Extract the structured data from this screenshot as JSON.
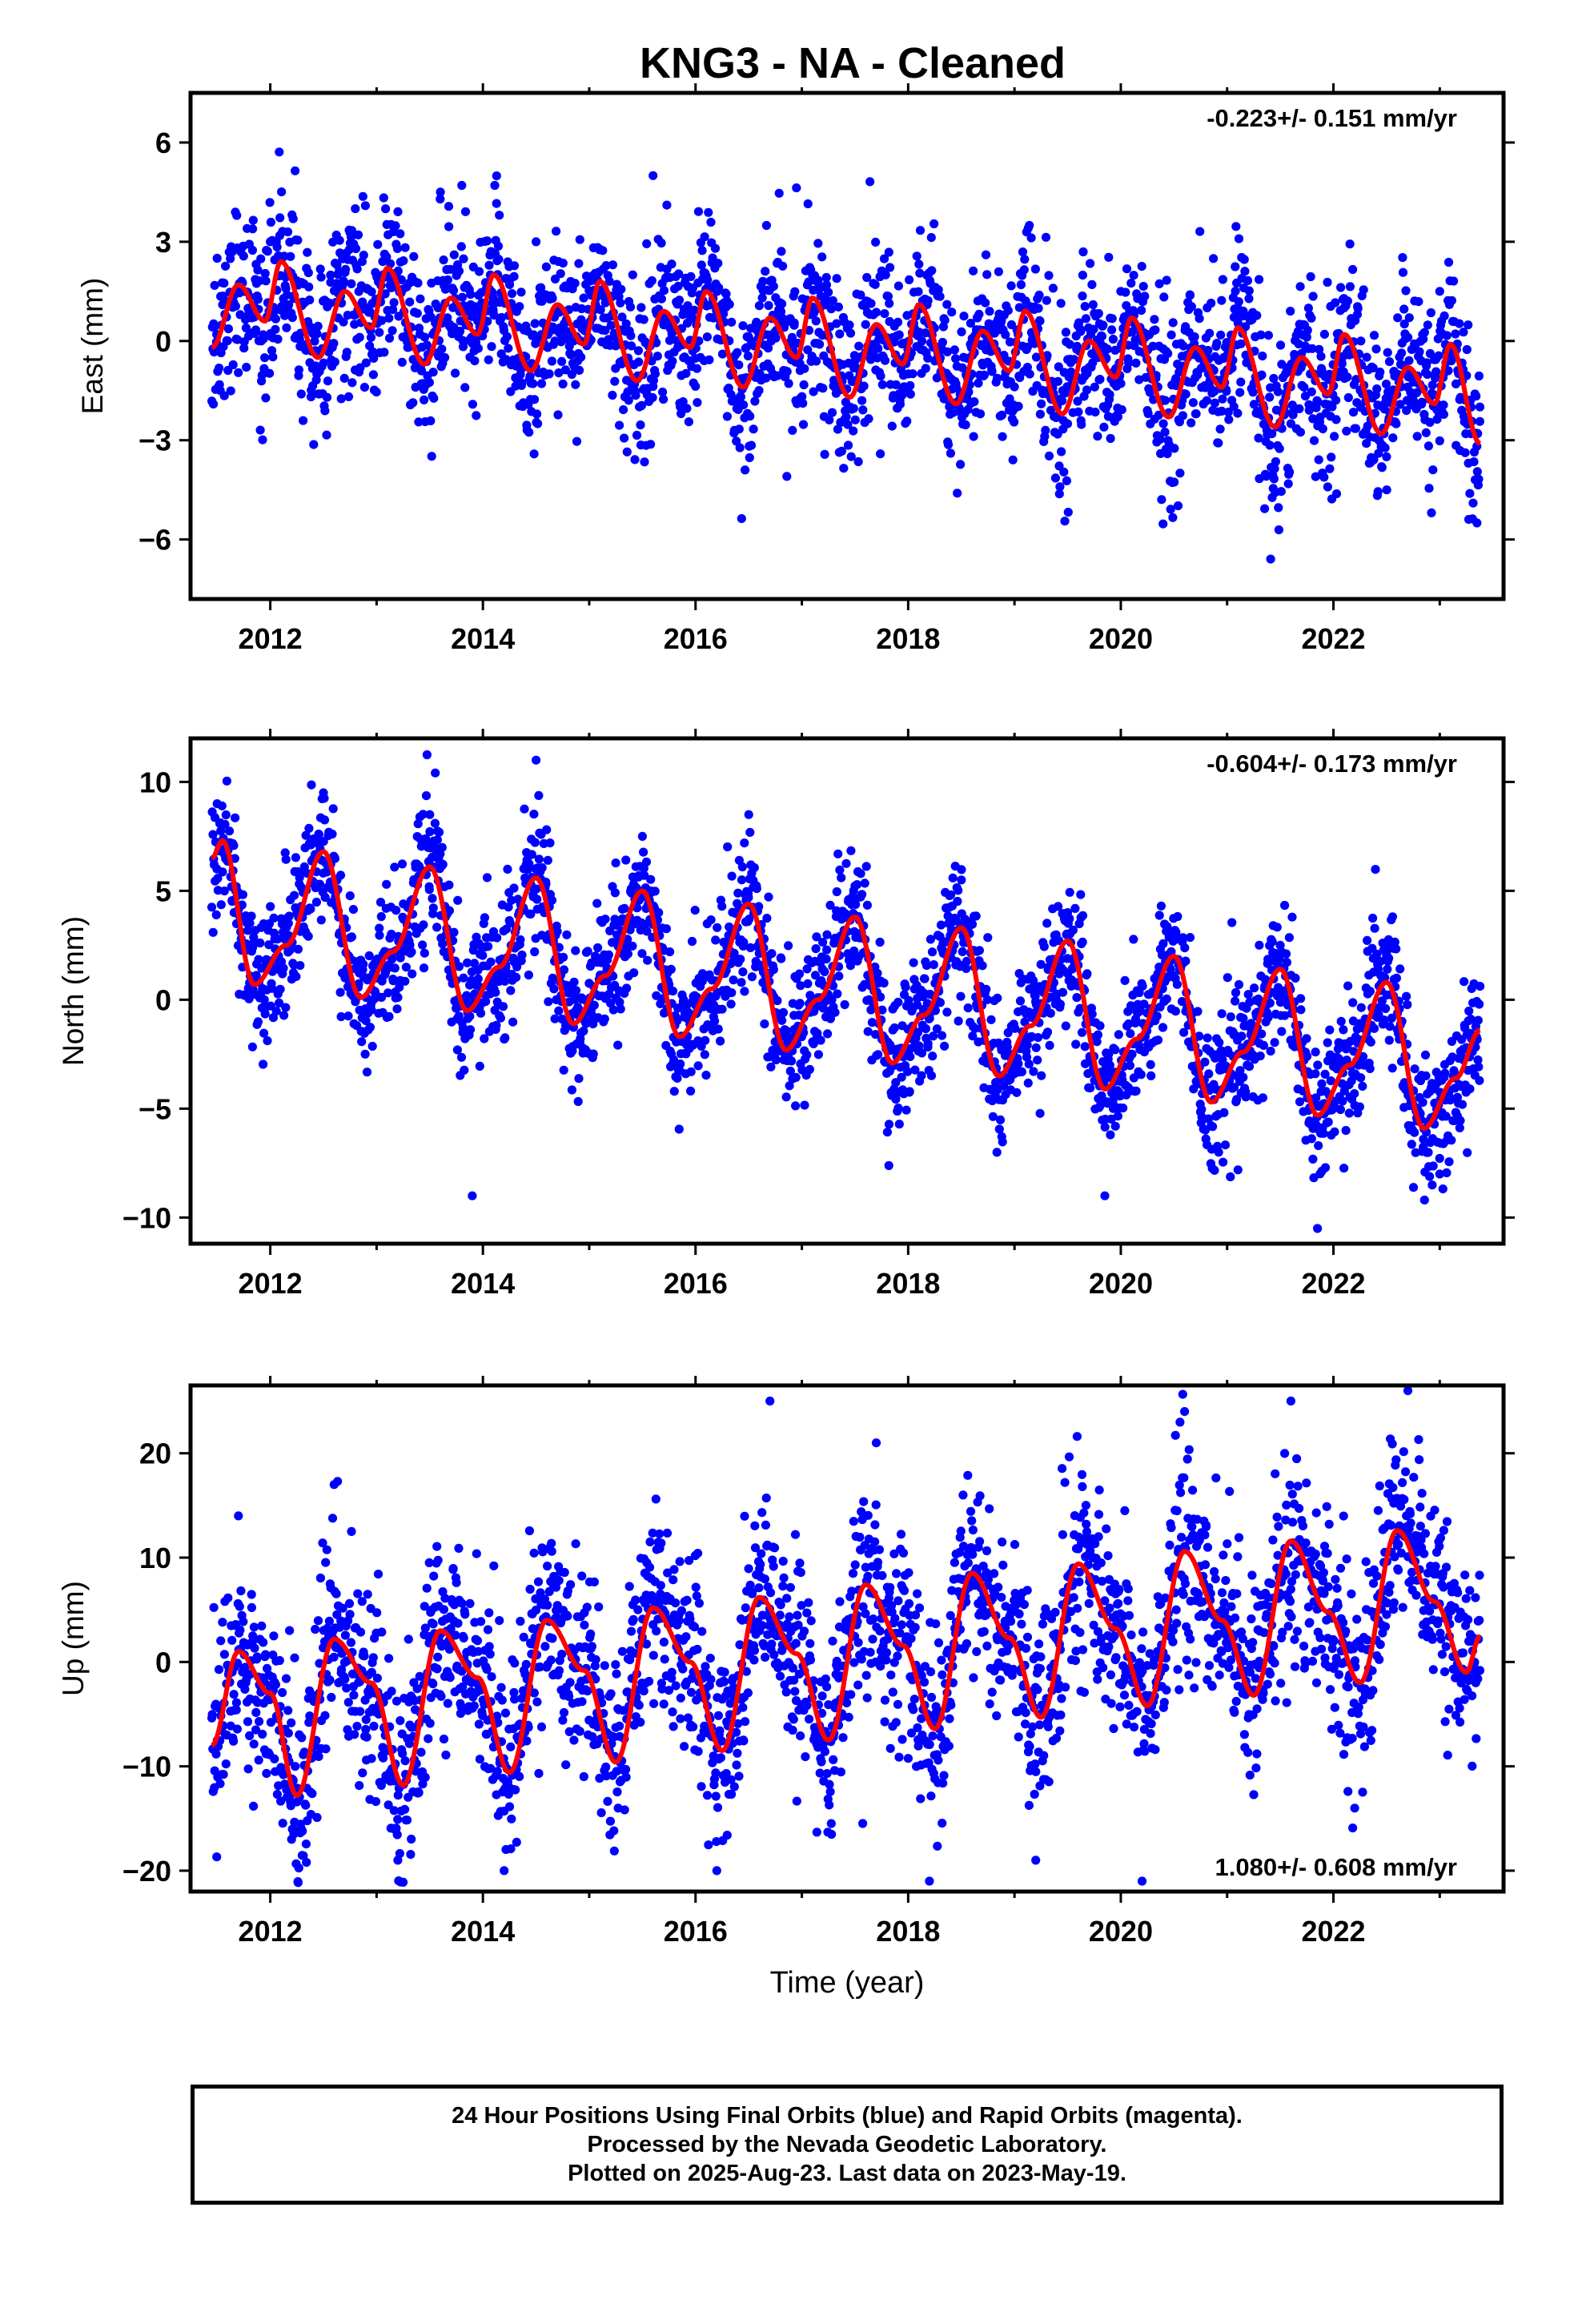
{
  "title": "KNG3  - NA - Cleaned",
  "footer": {
    "line1": "24 Hour Positions Using Final Orbits (blue) and Rapid Orbits (magenta).",
    "line2": "Processed by the Nevada Geodetic Laboratory.",
    "line3": "Plotted on 2025-Aug-23. Last data on 2023-May-19."
  },
  "colors": {
    "points": "#0000ff",
    "fit": "#ff0000",
    "frame": "#000000"
  },
  "chart_data": [
    {
      "type": "scatter",
      "ylabel": "East (mm)",
      "xlabel": "",
      "xlim": [
        2011.25,
        2023.6
      ],
      "ylim": [
        -7.8,
        7.5
      ],
      "xticks": [
        2012,
        2014,
        2016,
        2018,
        2020,
        2022
      ],
      "yticks": [
        -6,
        -3,
        0,
        3,
        6
      ],
      "ytick_labels": [
        "−6",
        "−3",
        "0",
        "3",
        "6"
      ],
      "rate_label": "-0.223+/- 0.151 mm/yr",
      "rate_label_position": "top-right",
      "data_range": [
        2011.45,
        2023.38
      ],
      "series": [
        {
          "kind": "points",
          "color": "#0000ff",
          "symbol": "dot",
          "x": [
            2011.5,
            2012.0,
            2012.8,
            2013.6,
            2014.5,
            2015.6,
            2016.2,
            2017.1,
            2017.6,
            2018.1,
            2018.6,
            2019.1,
            2019.5,
            2020.0,
            2020.4,
            2021.1,
            2021.6,
            2022.1,
            2022.5,
            2023.0,
            2023.35
          ],
          "y": [
            2.5,
            3.0,
            4.0,
            4.5,
            3.0,
            5.0,
            1.0,
            2.0,
            0.5,
            1.0,
            -1.0,
            1.0,
            -2.5,
            1.5,
            -2.5,
            1.0,
            -2.5,
            1.0,
            -3.5,
            1.5,
            -5.5
          ]
        },
        {
          "kind": "fit",
          "color": "#ff0000",
          "x": [
            2011.45,
            2011.7,
            2011.95,
            2012.1,
            2012.45,
            2012.7,
            2012.95,
            2013.1,
            2013.45,
            2013.7,
            2013.95,
            2014.1,
            2014.45,
            2014.7,
            2014.95,
            2015.1,
            2015.45,
            2015.7,
            2015.95,
            2016.1,
            2016.45,
            2016.7,
            2016.95,
            2017.1,
            2017.45,
            2017.7,
            2017.95,
            2018.1,
            2018.45,
            2018.7,
            2018.95,
            2019.1,
            2019.45,
            2019.7,
            2019.95,
            2020.1,
            2020.45,
            2020.7,
            2020.95,
            2021.1,
            2021.45,
            2021.7,
            2021.95,
            2022.1,
            2022.45,
            2022.7,
            2022.95,
            2023.1,
            2023.38
          ],
          "y": [
            -0.2,
            1.7,
            0.6,
            2.4,
            -0.5,
            1.5,
            0.4,
            2.2,
            -0.7,
            1.3,
            0.2,
            2.0,
            -0.9,
            1.1,
            -0.1,
            1.8,
            -1.2,
            0.9,
            -0.2,
            1.5,
            -1.4,
            0.7,
            -0.5,
            1.3,
            -1.7,
            0.5,
            -0.7,
            1.1,
            -1.9,
            0.3,
            -0.9,
            0.9,
            -2.2,
            0.0,
            -1.1,
            0.7,
            -2.3,
            -0.2,
            -1.4,
            0.4,
            -2.6,
            -0.5,
            -1.6,
            0.2,
            -2.8,
            -0.8,
            -1.9,
            -0.1,
            -3.1
          ]
        }
      ]
    },
    {
      "type": "scatter",
      "ylabel": "North (mm)",
      "xlabel": "",
      "xlim": [
        2011.25,
        2023.6
      ],
      "ylim": [
        -11.2,
        12.0
      ],
      "xticks": [
        2012,
        2014,
        2016,
        2018,
        2020,
        2022
      ],
      "yticks": [
        -10,
        -5,
        0,
        5,
        10
      ],
      "ytick_labels": [
        "−10",
        "−5",
        "0",
        "5",
        "10"
      ],
      "rate_label": "-0.604+/- 0.173 mm/yr",
      "rate_label_position": "top-right",
      "data_range": [
        2011.45,
        2023.38
      ],
      "series": [
        {
          "kind": "points",
          "color": "#0000ff",
          "symbol": "dot",
          "x": [
            2011.5,
            2012.5,
            2013.5,
            2013.9,
            2014.5,
            2015.5,
            2016.5,
            2017.5,
            2018.5,
            2019.5,
            2019.85,
            2020.5,
            2021.5,
            2021.85,
            2022.5,
            2023.0
          ],
          "y": [
            9.0,
            9.5,
            8.5,
            -9.0,
            11.0,
            7.5,
            8.5,
            4.5,
            5.5,
            4.0,
            -9.0,
            3.0,
            2.5,
            -10.5,
            2.0,
            -8.0
          ]
        },
        {
          "kind": "fit",
          "color": "#ff0000",
          "x": [
            2011.45,
            2011.55,
            2011.85,
            2012.15,
            2012.5,
            2012.85,
            2013.15,
            2013.5,
            2013.85,
            2014.15,
            2014.5,
            2014.85,
            2015.15,
            2015.5,
            2015.85,
            2016.15,
            2016.5,
            2016.85,
            2017.15,
            2017.5,
            2017.85,
            2018.15,
            2018.5,
            2018.85,
            2019.15,
            2019.5,
            2019.85,
            2020.15,
            2020.5,
            2020.85,
            2021.15,
            2021.5,
            2021.85,
            2022.15,
            2022.5,
            2022.85,
            2023.15,
            2023.38
          ],
          "y": [
            6.5,
            7.3,
            0.7,
            2.5,
            6.8,
            0.1,
            2.2,
            6.1,
            -0.5,
            1.5,
            5.6,
            -1.1,
            1.1,
            5.0,
            -1.7,
            0.5,
            4.4,
            -2.3,
            0.0,
            3.8,
            -2.9,
            -0.7,
            3.3,
            -3.5,
            -1.2,
            2.7,
            -4.1,
            -1.8,
            2.0,
            -4.7,
            -2.4,
            1.4,
            -5.3,
            -3.0,
            0.8,
            -5.9,
            -3.6,
            -1.4
          ]
        }
      ]
    },
    {
      "type": "scatter",
      "ylabel": "Up (mm)",
      "xlabel": "Time (year)",
      "xlim": [
        2011.25,
        2023.6
      ],
      "ylim": [
        -22.0,
        26.5
      ],
      "xticks": [
        2012,
        2014,
        2016,
        2018,
        2020,
        2022
      ],
      "yticks": [
        -20,
        -10,
        0,
        10,
        20
      ],
      "ytick_labels": [
        "−20",
        "−10",
        "0",
        "10",
        "20"
      ],
      "rate_label": "1.080+/- 0.608 mm/yr",
      "rate_label_position": "bottom-right",
      "data_range": [
        2011.45,
        2023.38
      ],
      "series": [
        {
          "kind": "points",
          "color": "#0000ff",
          "symbol": "dot",
          "x": [
            2011.7,
            2012.2,
            2012.6,
            2013.2,
            2014.2,
            2016.2,
            2016.7,
            2017.7,
            2018.2,
            2019.2,
            2020.2,
            2020.6,
            2021.6,
            2022.2,
            2022.7
          ],
          "y": [
            14.0,
            -17.0,
            17.0,
            -19.0,
            -20.0,
            -20.0,
            25.0,
            21.0,
            -21.0,
            -19.0,
            -21.0,
            24.0,
            25.0,
            -14.0,
            26.0
          ]
        },
        {
          "kind": "fit",
          "color": "#ff0000",
          "x": [
            2011.45,
            2011.7,
            2012.0,
            2012.25,
            2012.6,
            2012.95,
            2013.25,
            2013.6,
            2013.95,
            2014.25,
            2014.6,
            2014.95,
            2015.25,
            2015.6,
            2015.95,
            2016.25,
            2016.6,
            2016.95,
            2017.25,
            2017.6,
            2017.95,
            2018.25,
            2018.6,
            2018.95,
            2019.25,
            2019.6,
            2019.95,
            2020.25,
            2020.6,
            2020.95,
            2021.25,
            2021.6,
            2021.95,
            2022.25,
            2022.6,
            2022.95,
            2023.25,
            2023.38
          ],
          "y": [
            -8.0,
            1.0,
            -3.0,
            -12.8,
            2.2,
            -2.0,
            -11.8,
            3.0,
            -1.5,
            -10.6,
            4.0,
            -0.8,
            -9.6,
            5.2,
            0.0,
            -8.5,
            6.2,
            0.8,
            -7.5,
            7.4,
            1.6,
            -6.4,
            8.5,
            2.3,
            -5.3,
            9.4,
            3.2,
            -4.2,
            10.6,
            4.0,
            -3.2,
            11.6,
            4.8,
            -2.0,
            12.6,
            5.8,
            -1.0,
            2.5
          ]
        }
      ]
    }
  ]
}
